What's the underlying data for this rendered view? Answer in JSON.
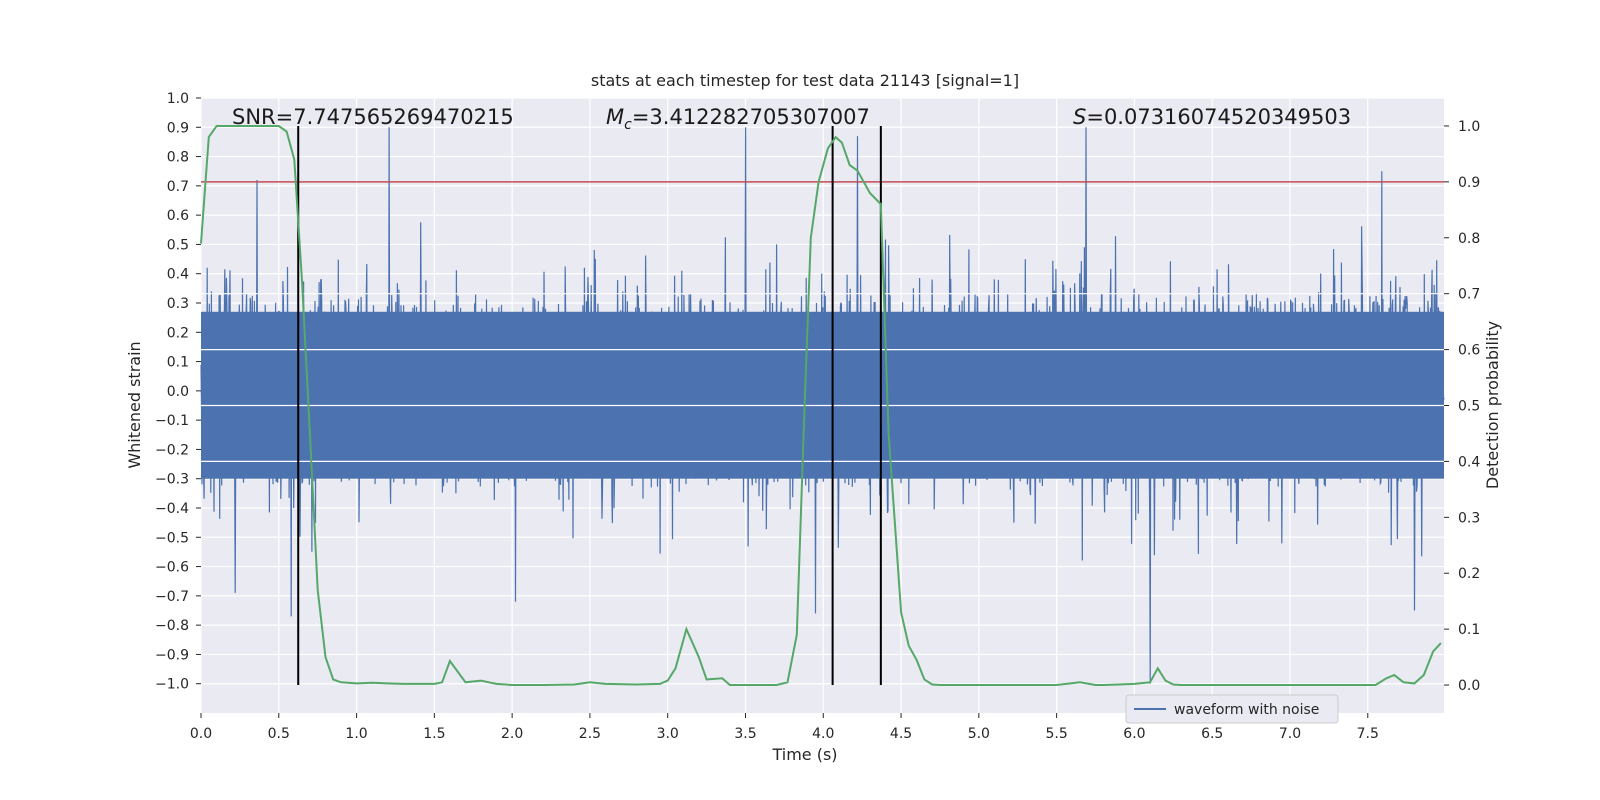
{
  "chart_data": {
    "type": "line",
    "title": "stats at each timestep for test data 21143 [signal=1]",
    "xlabel": "Time (s)",
    "ylabel_left": "Whitened strain",
    "ylabel_right": "Detection probability",
    "xlim": [
      0.0,
      7.99
    ],
    "ylim_left": [
      -1.1,
      1.0
    ],
    "ylim_right": [
      -0.05,
      1.05
    ],
    "x_ticks": [
      "0.0",
      "0.5",
      "1.0",
      "1.5",
      "2.0",
      "2.5",
      "3.0",
      "3.5",
      "4.0",
      "4.5",
      "5.0",
      "5.5",
      "6.0",
      "6.5",
      "7.0",
      "7.5"
    ],
    "x_tick_values": [
      0.0,
      0.5,
      1.0,
      1.5,
      2.0,
      2.5,
      3.0,
      3.5,
      4.0,
      4.5,
      5.0,
      5.5,
      6.0,
      6.5,
      7.0,
      7.5
    ],
    "y_left_ticks": [
      "1.0",
      "0.9",
      "0.8",
      "0.7",
      "0.6",
      "0.5",
      "0.4",
      "0.3",
      "0.2",
      "0.1",
      "0.0",
      "−0.1",
      "−0.2",
      "−0.3",
      "−0.4",
      "−0.5",
      "−0.6",
      "−0.7",
      "−0.8",
      "−0.9",
      "−1.0"
    ],
    "y_left_tick_values": [
      1.0,
      0.9,
      0.8,
      0.7,
      0.6,
      0.5,
      0.4,
      0.3,
      0.2,
      0.1,
      0.0,
      -0.1,
      -0.2,
      -0.3,
      -0.4,
      -0.5,
      -0.6,
      -0.7,
      -0.8,
      -0.9,
      -1.0
    ],
    "y_right_ticks": [
      "1.0",
      "0.9",
      "0.8",
      "0.7",
      "0.6",
      "0.5",
      "0.4",
      "0.3",
      "0.2",
      "0.1",
      "0.0"
    ],
    "y_right_tick_values": [
      1.0,
      0.9,
      0.8,
      0.7,
      0.6,
      0.5,
      0.4,
      0.3,
      0.2,
      0.1,
      0.0
    ],
    "annotations": {
      "snr": "SNR=7.747565269470215",
      "mc_symbol": "M",
      "mc_sub": "c",
      "mc_value": "=3.412282705307007",
      "s_symbol": "S",
      "s_value": "=0.07316074520349503"
    },
    "legend": {
      "label": "waveform with noise",
      "loc": "lower center-right"
    },
    "grid": true,
    "threshold_line": {
      "value": 0.9,
      "axis": "right",
      "color": "#c44e52"
    },
    "vertical_lines_x": [
      0.625,
      4.06,
      4.37
    ],
    "waveform": {
      "name": "waveform with noise",
      "color": "#4c72b0",
      "typical_amplitude": 0.33,
      "peaks": [
        {
          "x": 0.36,
          "y": 0.72
        },
        {
          "x": 1.21,
          "y": 0.9
        },
        {
          "x": 3.5,
          "y": 0.9
        },
        {
          "x": 4.22,
          "y": 0.87
        },
        {
          "x": 5.69,
          "y": 0.9
        },
        {
          "x": 7.59,
          "y": 0.75
        },
        {
          "x": 0.58,
          "y": -0.77
        },
        {
          "x": 3.95,
          "y": -0.76
        },
        {
          "x": 6.1,
          "y": -1.0
        },
        {
          "x": 7.8,
          "y": -0.75
        },
        {
          "x": 0.22,
          "y": -0.69
        },
        {
          "x": 2.02,
          "y": -0.72
        }
      ]
    },
    "probability": {
      "name": "Detection probability",
      "color": "#55a868",
      "x": [
        0.0,
        0.05,
        0.1,
        0.2,
        0.3,
        0.4,
        0.5,
        0.55,
        0.6,
        0.65,
        0.7,
        0.75,
        0.8,
        0.85,
        0.9,
        1.0,
        1.1,
        1.2,
        1.3,
        1.4,
        1.5,
        1.55,
        1.6,
        1.7,
        1.8,
        1.85,
        1.9,
        2.0,
        2.2,
        2.4,
        2.5,
        2.6,
        2.8,
        2.95,
        3.0,
        3.05,
        3.12,
        3.2,
        3.25,
        3.35,
        3.4,
        3.5,
        3.6,
        3.7,
        3.77,
        3.83,
        3.88,
        3.92,
        3.97,
        4.03,
        4.08,
        4.12,
        4.17,
        4.22,
        4.3,
        4.37,
        4.42,
        4.5,
        4.55,
        4.6,
        4.65,
        4.7,
        4.75,
        4.8,
        4.85,
        4.9,
        5.0,
        5.3,
        5.5,
        5.65,
        5.75,
        5.8,
        5.9,
        6.0,
        6.1,
        6.15,
        6.2,
        6.25,
        6.3,
        6.5,
        6.8,
        7.0,
        7.2,
        7.4,
        7.55,
        7.62,
        7.67,
        7.73,
        7.8,
        7.86,
        7.92,
        7.97
      ],
      "y": [
        0.79,
        0.98,
        1.0,
        1.0,
        1.0,
        1.0,
        1.0,
        0.99,
        0.94,
        0.72,
        0.45,
        0.17,
        0.05,
        0.01,
        0.005,
        0.003,
        0.004,
        0.003,
        0.002,
        0.002,
        0.002,
        0.005,
        0.043,
        0.005,
        0.008,
        0.005,
        0.002,
        0.0,
        0.0,
        0.001,
        0.005,
        0.002,
        0.001,
        0.002,
        0.008,
        0.03,
        0.1,
        0.05,
        0.01,
        0.012,
        0.0,
        0.0,
        0.0,
        0.0,
        0.005,
        0.09,
        0.5,
        0.8,
        0.9,
        0.96,
        0.98,
        0.97,
        0.93,
        0.92,
        0.88,
        0.86,
        0.45,
        0.13,
        0.07,
        0.045,
        0.01,
        0.001,
        0.0,
        0.0,
        0.0,
        0.0,
        0.0,
        0.0,
        0.0,
        0.005,
        0.0,
        0.0,
        0.001,
        0.002,
        0.005,
        0.03,
        0.008,
        0.001,
        0.0,
        0.0,
        0.0,
        0.0,
        0.0,
        0.0,
        0.0,
        0.012,
        0.018,
        0.005,
        0.003,
        0.018,
        0.06,
        0.075
      ]
    }
  }
}
